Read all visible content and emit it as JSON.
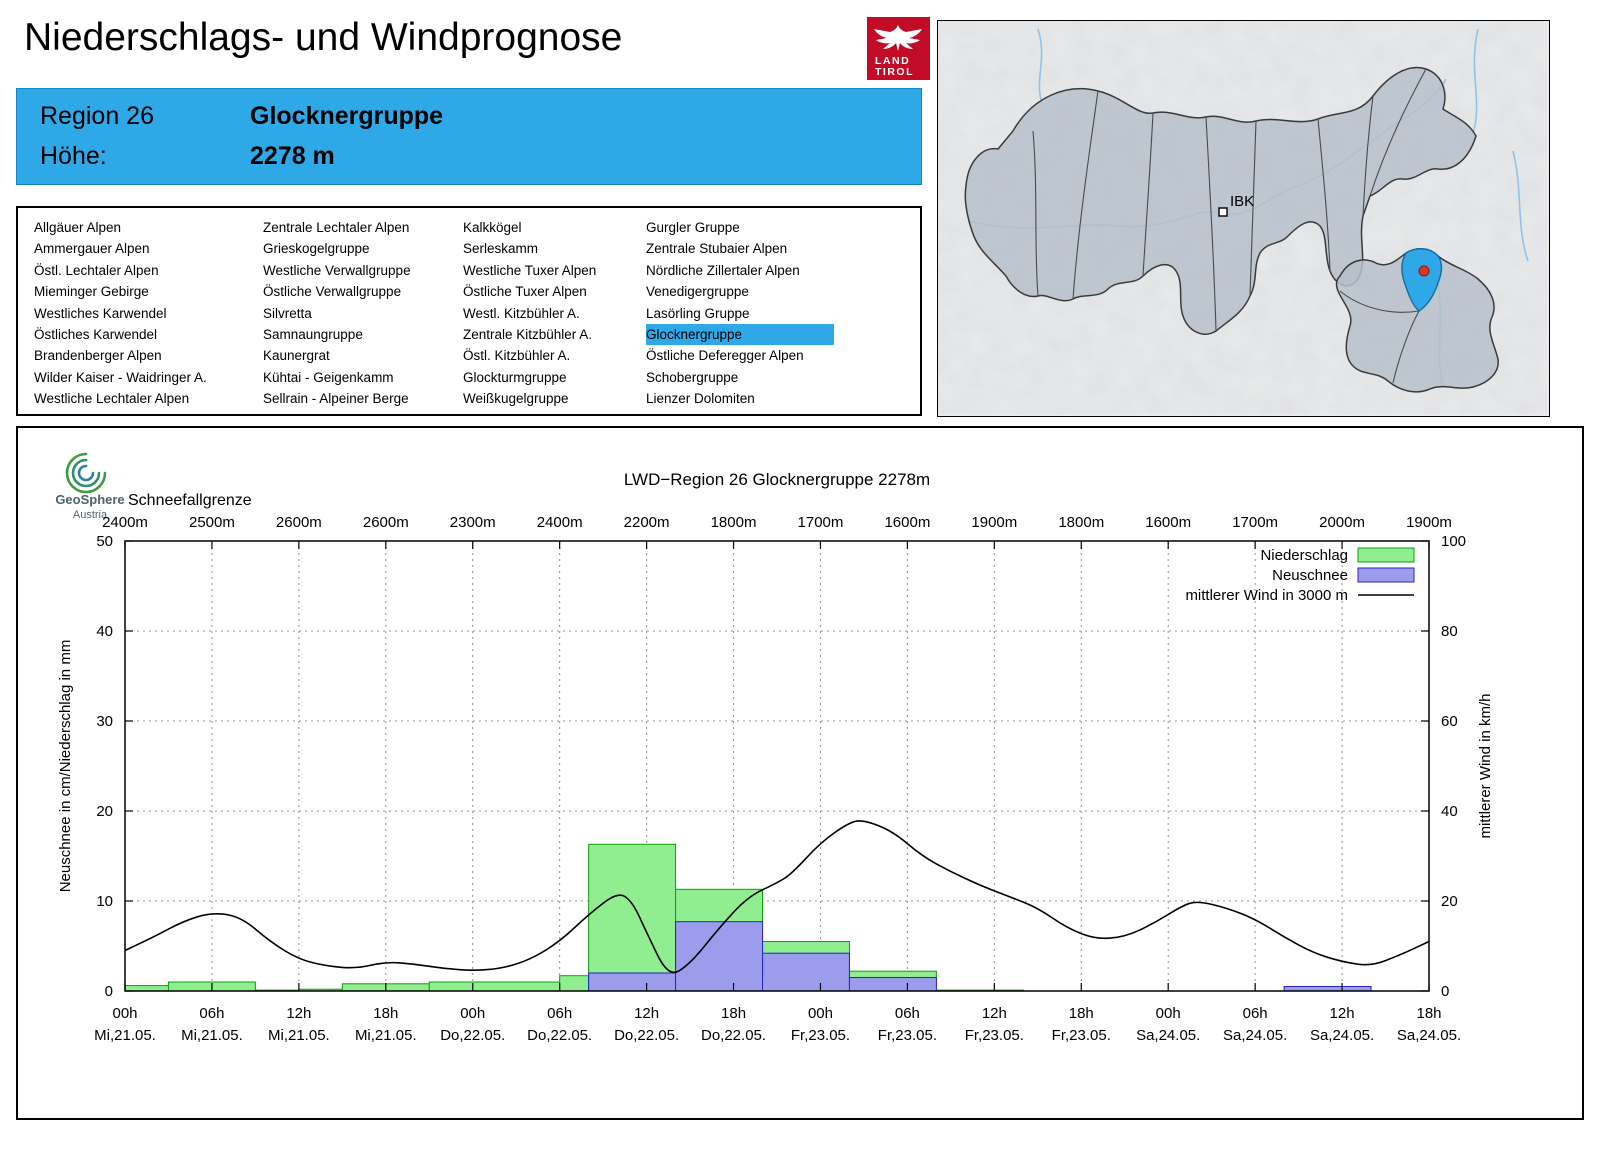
{
  "page": {
    "title": "Niederschlags- und Windprognose"
  },
  "logo": {
    "land": "LAND",
    "tirol": "TIROL",
    "color": "#c10b27"
  },
  "map": {
    "city_label": "IBK",
    "highlight_color": "#2fa8e8"
  },
  "region_header": {
    "region_label": "Region 26",
    "region_name": "Glocknergruppe",
    "altitude_label": "Höhe:",
    "altitude_value": "2278 m",
    "accent_color": "#2fa8e8"
  },
  "region_list": {
    "selected": "Glocknergruppe",
    "columns": [
      [
        "Allgäuer Alpen",
        "Ammergauer Alpen",
        "Östl. Lechtaler Alpen",
        "Mieminger Gebirge",
        "Westliches Karwendel",
        "Östliches Karwendel",
        "Brandenberger Alpen",
        "Wilder Kaiser - Waidringer A.",
        "Westliche Lechtaler Alpen"
      ],
      [
        "Zentrale Lechtaler Alpen",
        "Grieskogelgruppe",
        "Westliche Verwallgruppe",
        "Östliche Verwallgruppe",
        "Silvretta",
        "Samnaungruppe",
        "Kaunergrat",
        "Kühtai - Geigenkamm",
        "Sellrain - Alpeiner Berge"
      ],
      [
        "Kalkkögel",
        "Serleskamm",
        "Westliche Tuxer Alpen",
        "Östliche Tuxer Alpen",
        "Westl. Kitzbühler A.",
        "Zentrale Kitzbühler A.",
        "Östl. Kitzbühler A.",
        "Glockturmgruppe",
        "Weißkugelgruppe"
      ],
      [
        "Gurgler Gruppe",
        "Zentrale Stubaier Alpen",
        "Nördliche Zillertaler Alpen",
        "Venedigergruppe",
        "Lasörling Gruppe",
        "Glocknergruppe",
        "Östliche Deferegger Alpen",
        "Schobergruppe",
        "Lienzer Dolomiten"
      ]
    ]
  },
  "geosphere": {
    "name": "GeoSphere",
    "country": "Austria"
  },
  "chart_data": {
    "type": "bar+line",
    "title": "LWD−Region 26 Glocknergruppe 2278m",
    "snowline": {
      "label": "Schneefallgrenze",
      "values": [
        "2400m",
        "2500m",
        "2600m",
        "2600m",
        "2300m",
        "2400m",
        "2200m",
        "1800m",
        "1700m",
        "1600m",
        "1900m",
        "1800m",
        "1600m",
        "1700m",
        "2000m",
        "1900m"
      ]
    },
    "x_axis": {
      "hours_min": 0,
      "hours_max": 90,
      "tick_step_hours": 6,
      "ticks": [
        {
          "time": "00h",
          "date": "Mi,21.05."
        },
        {
          "time": "06h",
          "date": "Mi,21.05."
        },
        {
          "time": "12h",
          "date": "Mi,21.05."
        },
        {
          "time": "18h",
          "date": "Mi,21.05."
        },
        {
          "time": "00h",
          "date": "Do,22.05."
        },
        {
          "time": "06h",
          "date": "Do,22.05."
        },
        {
          "time": "12h",
          "date": "Do,22.05."
        },
        {
          "time": "18h",
          "date": "Do,22.05."
        },
        {
          "time": "00h",
          "date": "Fr,23.05."
        },
        {
          "time": "06h",
          "date": "Fr,23.05."
        },
        {
          "time": "12h",
          "date": "Fr,23.05."
        },
        {
          "time": "18h",
          "date": "Fr,23.05."
        },
        {
          "time": "00h",
          "date": "Sa,24.05."
        },
        {
          "time": "06h",
          "date": "Sa,24.05."
        },
        {
          "time": "12h",
          "date": "Sa,24.05."
        },
        {
          "time": "18h",
          "date": "Sa,24.05."
        }
      ]
    },
    "y_left": {
      "label": "Neuschnee in cm/Niederschlag in mm",
      "min": 0,
      "max": 50,
      "ticks": [
        0,
        10,
        20,
        30,
        40,
        50
      ]
    },
    "y_right": {
      "label": "mittlerer Wind in km/h",
      "min": 0,
      "max": 100,
      "ticks": [
        0,
        20,
        40,
        60,
        80,
        100
      ]
    },
    "legend": [
      {
        "label": "Niederschlag",
        "swatch": "box",
        "fill": "#90ee90",
        "stroke": "#0ca00c"
      },
      {
        "label": "Neuschnee",
        "swatch": "box",
        "fill": "#9c9cec",
        "stroke": "#2424c8"
      },
      {
        "label": "mittlerer Wind in 3000 m",
        "swatch": "line",
        "stroke": "#000000"
      }
    ],
    "grid": "dotted",
    "series": {
      "niederschlag_mm": [
        [
          0,
          3,
          0.6
        ],
        [
          3,
          9,
          1.0
        ],
        [
          9,
          12,
          0.1
        ],
        [
          12,
          15,
          0.2
        ],
        [
          15,
          21,
          0.8
        ],
        [
          21,
          30,
          1.0
        ],
        [
          30,
          32,
          1.7
        ],
        [
          32,
          38,
          16.3
        ],
        [
          38,
          44,
          11.3
        ],
        [
          44,
          50,
          5.5
        ],
        [
          50,
          56,
          2.2
        ],
        [
          56,
          62,
          0.1
        ]
      ],
      "neuschnee_cm": [
        [
          32,
          38,
          2.0
        ],
        [
          38,
          44,
          7.7
        ],
        [
          44,
          50,
          4.2
        ],
        [
          50,
          56,
          1.5
        ],
        [
          80,
          86,
          0.5
        ]
      ],
      "wind_kmh": [
        [
          0,
          9
        ],
        [
          2,
          12
        ],
        [
          4,
          15.5
        ],
        [
          6,
          17.5
        ],
        [
          8,
          16.5
        ],
        [
          10,
          11
        ],
        [
          12,
          7
        ],
        [
          14,
          5.5
        ],
        [
          16,
          5
        ],
        [
          18,
          6.5
        ],
        [
          20,
          6
        ],
        [
          22,
          5
        ],
        [
          24,
          4.5
        ],
        [
          26,
          5
        ],
        [
          28,
          7
        ],
        [
          30,
          11
        ],
        [
          32,
          17
        ],
        [
          34,
          22
        ],
        [
          35,
          20
        ],
        [
          36,
          13
        ],
        [
          37.5,
          3
        ],
        [
          39,
          6
        ],
        [
          41,
          14
        ],
        [
          43,
          21
        ],
        [
          45,
          24
        ],
        [
          46,
          26
        ],
        [
          48,
          33
        ],
        [
          50,
          37.5
        ],
        [
          51,
          38
        ],
        [
          53,
          35.5
        ],
        [
          55,
          30
        ],
        [
          57,
          26.5
        ],
        [
          59,
          23.5
        ],
        [
          61,
          21
        ],
        [
          63,
          18.5
        ],
        [
          65,
          14
        ],
        [
          67,
          11.5
        ],
        [
          69,
          12
        ],
        [
          71,
          15
        ],
        [
          73,
          19
        ],
        [
          74,
          20
        ],
        [
          76,
          18.5
        ],
        [
          78,
          16
        ],
        [
          80,
          12
        ],
        [
          82,
          8.5
        ],
        [
          84,
          6.5
        ],
        [
          86,
          5.5
        ],
        [
          88,
          8
        ],
        [
          90,
          11
        ]
      ]
    }
  }
}
